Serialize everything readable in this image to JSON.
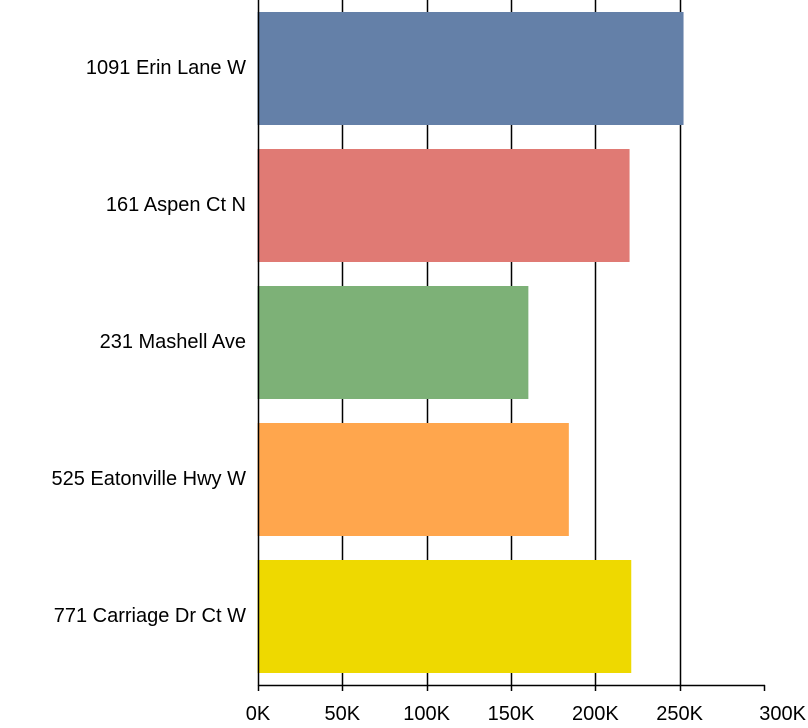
{
  "chart_data": {
    "type": "bar",
    "orientation": "horizontal",
    "title": "",
    "xlabel": "",
    "ylabel": "",
    "categories": [
      "1091 Erin Lane W",
      "161 Aspen Ct N",
      "231 Mashell Ave",
      "525 Eatonville Hwy W",
      "771 Carriage Dr Ct W"
    ],
    "values": [
      252000,
      220000,
      160000,
      184000,
      221000
    ],
    "colors": [
      "#6480a8",
      "#e07a74",
      "#7db177",
      "#ffa64d",
      "#eed900"
    ],
    "xlim": [
      0,
      300000
    ],
    "xticks": [
      0,
      50000,
      100000,
      150000,
      200000,
      250000,
      300000
    ],
    "xtick_labels": [
      "0K",
      "50K",
      "100K",
      "150K",
      "200K",
      "250K",
      "300K"
    ],
    "grid": true,
    "legend": "none"
  }
}
